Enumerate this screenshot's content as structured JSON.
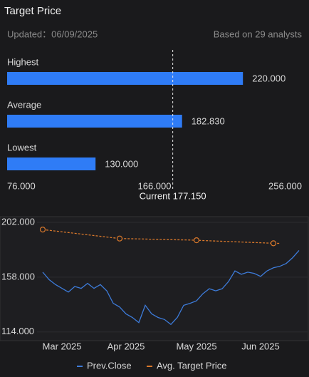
{
  "header": {
    "title": "Target Price",
    "updated": "Updated：06/09/2025",
    "analysts": "Based on 29 analysts"
  },
  "chart_data": [
    {
      "type": "bar",
      "orientation": "horizontal",
      "categories": [
        "Highest",
        "Average",
        "Lowest"
      ],
      "values": [
        220,
        182.83,
        130
      ],
      "value_labels": [
        "220.000",
        "182.830",
        "130.000"
      ],
      "color": "#2f7cf6",
      "xlim": [
        76,
        256
      ],
      "xticks": [
        {
          "value": 76,
          "label": "76.000"
        },
        {
          "value": 166,
          "label": "166.000"
        },
        {
          "value": 256,
          "label": "256.000"
        }
      ],
      "annotations": [
        {
          "value": 177.15,
          "label": "Current 177.150"
        }
      ]
    },
    {
      "type": "line",
      "categories": [
        null,
        null,
        null,
        "Mar 2025",
        null,
        null,
        null,
        null,
        null,
        null,
        null,
        null,
        null,
        "Apr 2025",
        null,
        null,
        null,
        null,
        null,
        null,
        null,
        null,
        null,
        null,
        "May 2025",
        null,
        null,
        null,
        null,
        null,
        null,
        null,
        null,
        null,
        "Jun 2025",
        null,
        null,
        null,
        null,
        null,
        null
      ],
      "series": [
        {
          "name": "Prev.Close",
          "color": "#3d7bd9",
          "style": "solid",
          "values": [
            162,
            156,
            152,
            149,
            146,
            150.5,
            149,
            153,
            149,
            152,
            147,
            137,
            134,
            128.5,
            125.6,
            121.5,
            135.4,
            128.5,
            125.6,
            124,
            120,
            125.6,
            135.4,
            137,
            139,
            144.7,
            148.7,
            147,
            148.7,
            154.5,
            163,
            160.3,
            162,
            161,
            158.6,
            163,
            165.5,
            166.7,
            169,
            173.6,
            179.4
          ]
        },
        {
          "name": "Avg. Target Price",
          "color": "#d9782b",
          "style": "dashed",
          "marker_every": 12,
          "values": [
            196.2,
            195.6,
            195.0,
            194.4,
            193.8,
            193.2,
            192.6,
            192.0,
            191.4,
            190.8,
            190.2,
            189.6,
            189.0,
            188.9,
            188.8,
            188.7,
            188.6,
            188.4,
            188.3,
            188.2,
            188.1,
            188.0,
            187.9,
            187.8,
            187.6,
            187.4,
            187.2,
            187.0,
            186.8,
            186.6,
            186.4,
            186.2,
            186.0,
            185.8,
            185.6,
            185.4,
            185.2,
            185.1,
            null,
            null,
            null
          ]
        }
      ],
      "ylim": [
        107,
        206
      ],
      "yticks": [
        {
          "value": 202,
          "label": "202.000"
        },
        {
          "value": 158,
          "label": "158.000"
        },
        {
          "value": 114,
          "label": "114.000"
        }
      ],
      "grid": true
    }
  ]
}
